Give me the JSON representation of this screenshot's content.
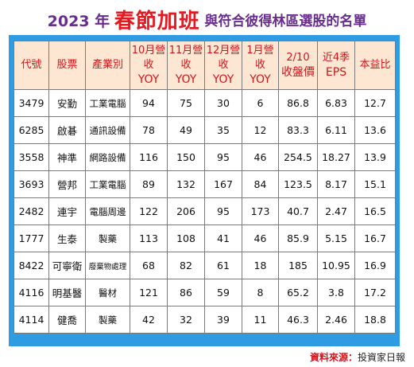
{
  "title": {
    "year": "2023 年",
    "highlight": "春節加班",
    "rest": "與符合彼得林區選股的名單"
  },
  "table": {
    "headers": [
      {
        "line1": "代號",
        "line2": ""
      },
      {
        "line1": "股票",
        "line2": ""
      },
      {
        "line1": "產業別",
        "line2": ""
      },
      {
        "line1": "10月營收",
        "line2": "YOY"
      },
      {
        "line1": "11月營收",
        "line2": "YOY"
      },
      {
        "line1": "12月營收",
        "line2": "YOY"
      },
      {
        "line1": "1月營收",
        "line2": "YOY"
      },
      {
        "line1": "2/10",
        "line2": "收盤價"
      },
      {
        "line1": "近4季",
        "line2": "EPS"
      },
      {
        "line1": "本益比",
        "line2": ""
      }
    ],
    "rows": [
      [
        "3479",
        "安勤",
        "工業電腦",
        "94",
        "75",
        "30",
        "6",
        "86.8",
        "6.83",
        "12.7"
      ],
      [
        "6285",
        "啟碁",
        "通訊設備",
        "78",
        "49",
        "35",
        "12",
        "83.3",
        "6.11",
        "13.6"
      ],
      [
        "3558",
        "神準",
        "網路設備",
        "116",
        "150",
        "95",
        "46",
        "254.5",
        "18.27",
        "13.9"
      ],
      [
        "3693",
        "營邦",
        "工業電腦",
        "89",
        "132",
        "167",
        "84",
        "123.5",
        "8.17",
        "15.1"
      ],
      [
        "2482",
        "連宇",
        "電腦周邊",
        "122",
        "206",
        "95",
        "173",
        "40.7",
        "2.47",
        "16.5"
      ],
      [
        "1777",
        "生泰",
        "製藥",
        "113",
        "108",
        "41",
        "46",
        "85.9",
        "5.15",
        "16.7"
      ],
      [
        "8422",
        "可寧衛",
        "廢棄物處理",
        "68",
        "82",
        "61",
        "18",
        "185",
        "10.95",
        "16.9"
      ],
      [
        "4116",
        "明基醫",
        "醫材",
        "121",
        "86",
        "59",
        "8",
        "65.2",
        "3.8",
        "17.2"
      ],
      [
        "4114",
        "健喬",
        "製藥",
        "42",
        "32",
        "39",
        "11",
        "46.3",
        "2.46",
        "18.8"
      ]
    ]
  },
  "source": {
    "label": "資料來源：",
    "value": "投資家日報"
  },
  "colors": {
    "title": "#6a2c8e",
    "highlight": "#e01b22",
    "frame": "#2f9be3",
    "header_bg": "#fde7d2",
    "header_text": "#d0141c"
  }
}
